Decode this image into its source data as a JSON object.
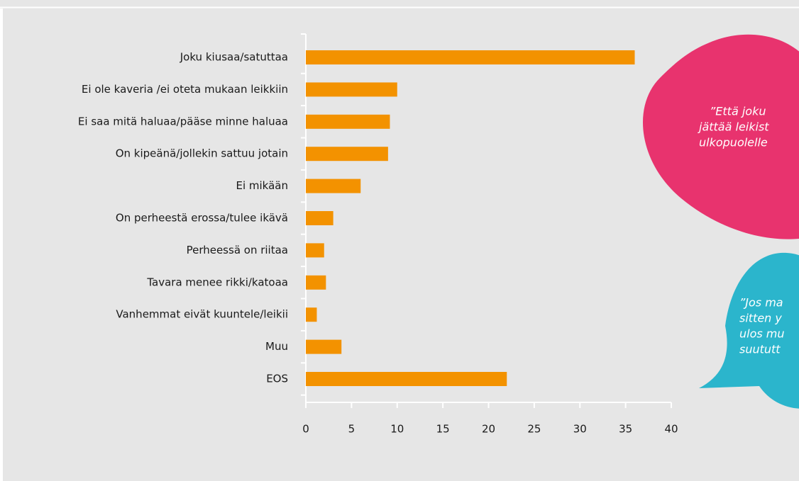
{
  "chart_data": {
    "type": "bar",
    "orientation": "horizontal",
    "categories": [
      "Joku kiusaa/satuttaa",
      "Ei ole kaveria /ei oteta mukaan leikkiin",
      "Ei saa mitä haluaa/pääse minne haluaa",
      "On kipeänä/jollekin sattuu jotain",
      "Ei mikään",
      "On perheestä erossa/tulee ikävä",
      "Perheessä on riitaa",
      "Tavara menee rikki/katoaa",
      "Vanhemmat eivät kuuntele/leikii",
      "Muu",
      "EOS"
    ],
    "values": [
      36,
      10,
      9.2,
      9,
      6,
      3,
      2,
      2.2,
      1.2,
      3.9,
      22
    ],
    "color": "#f39200",
    "xlim": [
      0,
      40
    ],
    "xticks": [
      0,
      5,
      10,
      15,
      20,
      25,
      30,
      35,
      40
    ],
    "grid": false
  },
  "quotes": [
    {
      "color": "#e8336e",
      "lines": [
        "”Että joku",
        "jättää leikist",
        "ulkopuolelle"
      ]
    },
    {
      "color": "#2bb5cc",
      "lines": [
        "”Jos ma",
        "sitten y",
        "ulos mu",
        "suututt"
      ]
    }
  ]
}
